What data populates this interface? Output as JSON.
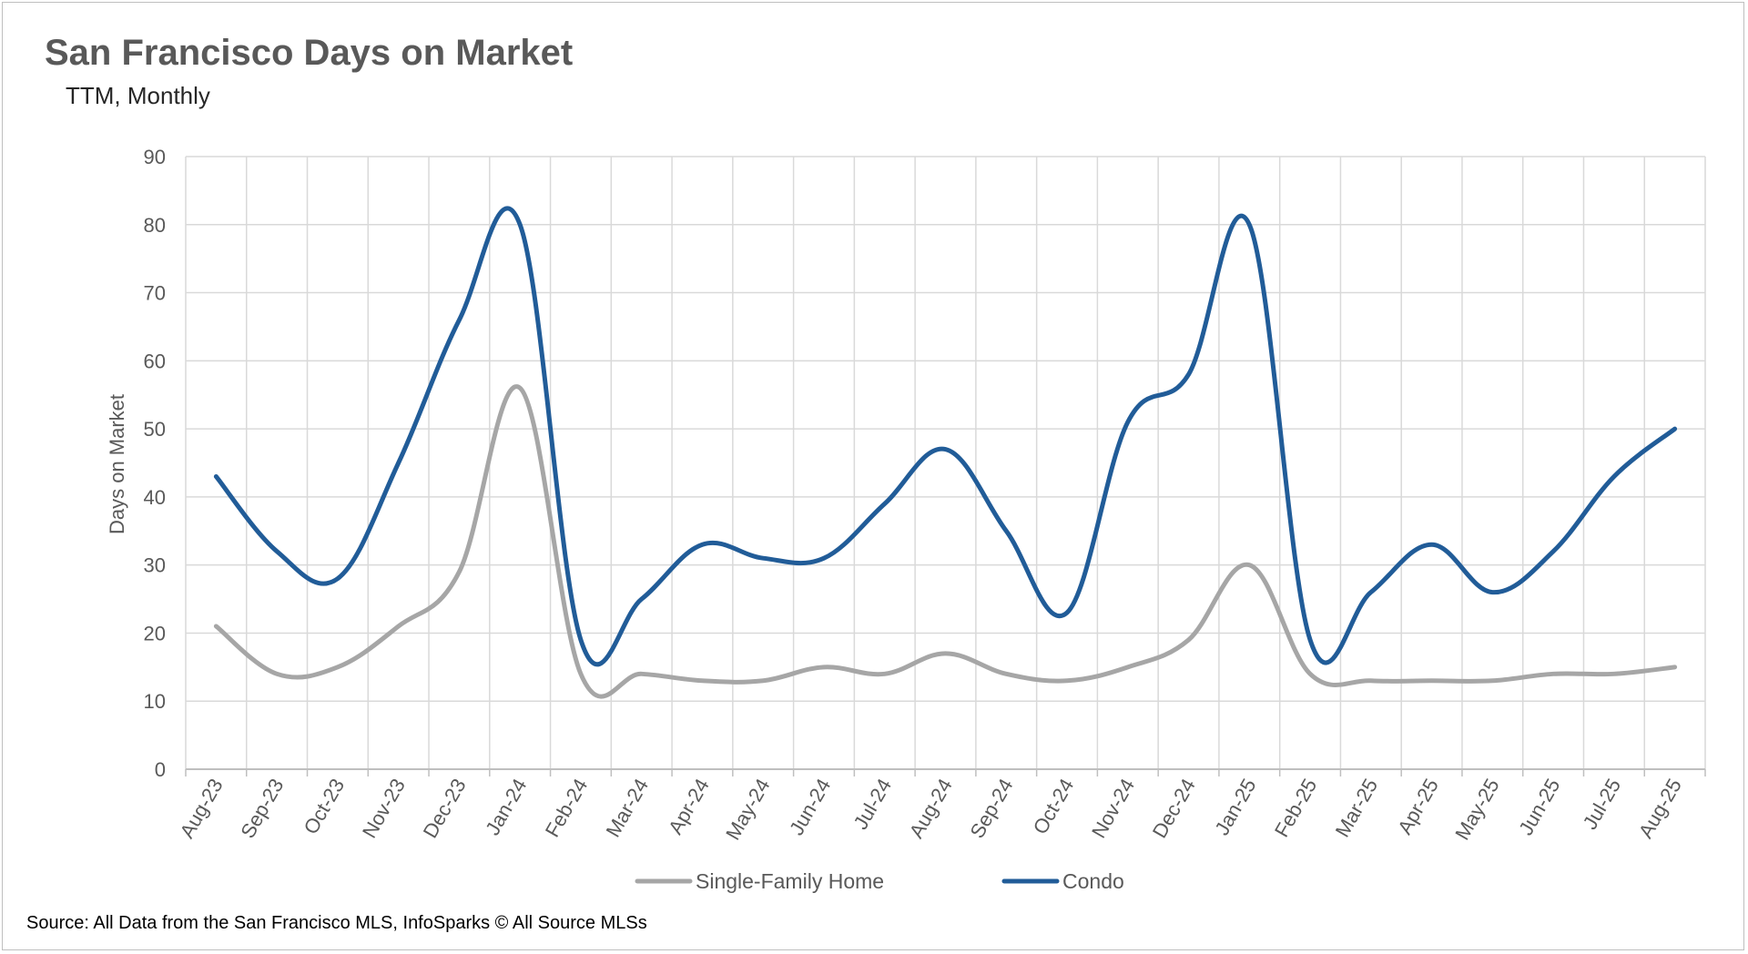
{
  "chart_data": {
    "type": "line",
    "title": "San Francisco Days on Market",
    "subtitle": "TTM, Monthly",
    "xlabel": "",
    "ylabel": "Days on Market",
    "ylim": [
      0,
      90
    ],
    "yticks": [
      0,
      10,
      20,
      30,
      40,
      50,
      60,
      70,
      80,
      90
    ],
    "grid": true,
    "legend_position": "bottom",
    "categories": [
      "Aug-23",
      "Sep-23",
      "Oct-23",
      "Nov-23",
      "Dec-23",
      "Jan-24",
      "Feb-24",
      "Mar-24",
      "Apr-24",
      "May-24",
      "Jun-24",
      "Jul-24",
      "Aug-24",
      "Sep-24",
      "Oct-24",
      "Nov-24",
      "Dec-24",
      "Jan-25",
      "Feb-25",
      "Mar-25",
      "Apr-25",
      "May-25",
      "Jun-25",
      "Jul-25",
      "Aug-25"
    ],
    "series": [
      {
        "name": "Single-Family Home",
        "color": "#a6a6a6",
        "values": [
          21,
          14,
          15,
          21,
          29,
          56,
          14,
          14,
          13,
          13,
          15,
          14,
          17,
          14,
          13,
          15,
          19,
          30,
          14,
          13,
          13,
          13,
          14,
          14,
          15
        ]
      },
      {
        "name": "Condo",
        "color": "#215c98",
        "values": [
          43,
          32,
          28,
          45,
          66,
          80,
          19,
          25,
          33,
          31,
          31,
          39,
          47,
          35,
          23,
          51,
          58,
          80,
          19,
          26,
          33,
          26,
          32,
          43,
          50
        ]
      }
    ],
    "source": "Source: All Data from the San Francisco MLS, InfoSparks © All Source MLSs"
  }
}
